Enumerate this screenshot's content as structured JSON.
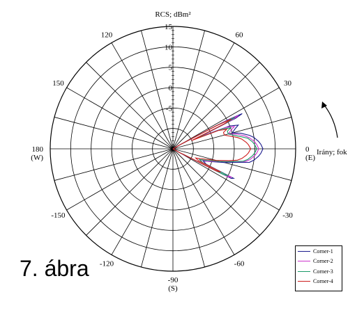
{
  "caption": "7. ábra",
  "chart_data": {
    "type": "polar",
    "title": "RCS; dBm²",
    "angle_axis_label": "Irány; fok",
    "radial_range": [
      -15,
      15
    ],
    "radial_ticks": [
      -5,
      0,
      5,
      10,
      15
    ],
    "angle_ticks": [
      {
        "deg": 0,
        "label": "0",
        "sub": "(E)"
      },
      {
        "deg": 30,
        "label": "30"
      },
      {
        "deg": 60,
        "label": "60"
      },
      {
        "deg": 90,
        "label": "",
        "sub": ""
      },
      {
        "deg": 120,
        "label": "120"
      },
      {
        "deg": 150,
        "label": "150"
      },
      {
        "deg": 180,
        "label": "180",
        "sub": "(W)"
      },
      {
        "deg": -150,
        "label": "-150"
      },
      {
        "deg": -120,
        "label": "-120"
      },
      {
        "deg": -90,
        "label": "-90",
        "sub": "(S)"
      },
      {
        "deg": -60,
        "label": "-60"
      },
      {
        "deg": -30,
        "label": "-30"
      }
    ],
    "grid": true,
    "legend_position": "bottom-right",
    "series": [
      {
        "name": "Corner-1",
        "color": "#1a1a8c",
        "points": [
          [
            -30,
            -13
          ],
          [
            -28,
            -11
          ],
          [
            -27,
            1
          ],
          [
            -26,
            1.5
          ],
          [
            -25,
            -6
          ],
          [
            -22,
            -7
          ],
          [
            -20,
            -6
          ],
          [
            -15,
            -2
          ],
          [
            -12,
            1
          ],
          [
            -10,
            4
          ],
          [
            -8,
            5
          ],
          [
            -5,
            6
          ],
          [
            -3,
            6.5
          ],
          [
            0,
            7
          ],
          [
            3,
            6.5
          ],
          [
            5,
            6
          ],
          [
            8,
            5
          ],
          [
            10,
            4
          ],
          [
            13,
            2
          ],
          [
            15,
            0
          ],
          [
            18,
            1
          ],
          [
            20,
            2
          ],
          [
            22,
            0
          ],
          [
            24,
            -8
          ],
          [
            26,
            2
          ],
          [
            27,
            4
          ],
          [
            28,
            0
          ],
          [
            30,
            -13
          ]
        ]
      },
      {
        "name": "Corner-2",
        "color": "#cc33cc",
        "points": [
          [
            -30,
            -13
          ],
          [
            -28,
            -11
          ],
          [
            -27,
            0
          ],
          [
            -26,
            1
          ],
          [
            -25,
            -7
          ],
          [
            -22,
            -8
          ],
          [
            -20,
            -6
          ],
          [
            -15,
            -3
          ],
          [
            -12,
            0
          ],
          [
            -10,
            3
          ],
          [
            -8,
            4
          ],
          [
            -5,
            5
          ],
          [
            -3,
            5.5
          ],
          [
            0,
            6
          ],
          [
            3,
            5.5
          ],
          [
            5,
            5
          ],
          [
            8,
            4
          ],
          [
            10,
            3
          ],
          [
            13,
            1
          ],
          [
            15,
            -1
          ],
          [
            18,
            0
          ],
          [
            20,
            1
          ],
          [
            22,
            -1
          ],
          [
            24,
            -8
          ],
          [
            26,
            1
          ],
          [
            27,
            3
          ],
          [
            28,
            -1
          ],
          [
            30,
            -13
          ]
        ]
      },
      {
        "name": "Corner-3",
        "color": "#1a9966",
        "points": [
          [
            -30,
            -13
          ],
          [
            -28,
            -12
          ],
          [
            -27,
            -1
          ],
          [
            -26,
            0
          ],
          [
            -25,
            -7
          ],
          [
            -22,
            -8
          ],
          [
            -20,
            -7
          ],
          [
            -15,
            -3
          ],
          [
            -12,
            0
          ],
          [
            -10,
            2.5
          ],
          [
            -8,
            3.5
          ],
          [
            -5,
            4.5
          ],
          [
            -3,
            5
          ],
          [
            0,
            5.5
          ],
          [
            3,
            5
          ],
          [
            5,
            4.5
          ],
          [
            8,
            3.5
          ],
          [
            10,
            2
          ],
          [
            13,
            0
          ],
          [
            15,
            -1
          ],
          [
            18,
            -1
          ],
          [
            20,
            0
          ],
          [
            22,
            -2
          ],
          [
            24,
            -9
          ],
          [
            26,
            0
          ],
          [
            27,
            2
          ],
          [
            28,
            -2
          ],
          [
            30,
            -13
          ]
        ]
      },
      {
        "name": "Corner-4",
        "color": "#cc1a1a",
        "points": [
          [
            -30,
            -13
          ],
          [
            -28,
            -12
          ],
          [
            -27,
            -3
          ],
          [
            -26,
            -2
          ],
          [
            -25,
            -8
          ],
          [
            -22,
            -9
          ],
          [
            -20,
            -8
          ],
          [
            -15,
            -4
          ],
          [
            -12,
            -1
          ],
          [
            -10,
            1
          ],
          [
            -8,
            2
          ],
          [
            -5,
            3
          ],
          [
            -3,
            3.5
          ],
          [
            0,
            4
          ],
          [
            3,
            3.5
          ],
          [
            5,
            3
          ],
          [
            8,
            2
          ],
          [
            10,
            1
          ],
          [
            13,
            -1
          ],
          [
            15,
            -2
          ],
          [
            18,
            -2
          ],
          [
            20,
            -1
          ],
          [
            22,
            -3
          ],
          [
            24,
            -10
          ],
          [
            26,
            -1
          ],
          [
            27,
            1
          ],
          [
            28,
            -3
          ],
          [
            30,
            -13
          ]
        ]
      }
    ]
  }
}
